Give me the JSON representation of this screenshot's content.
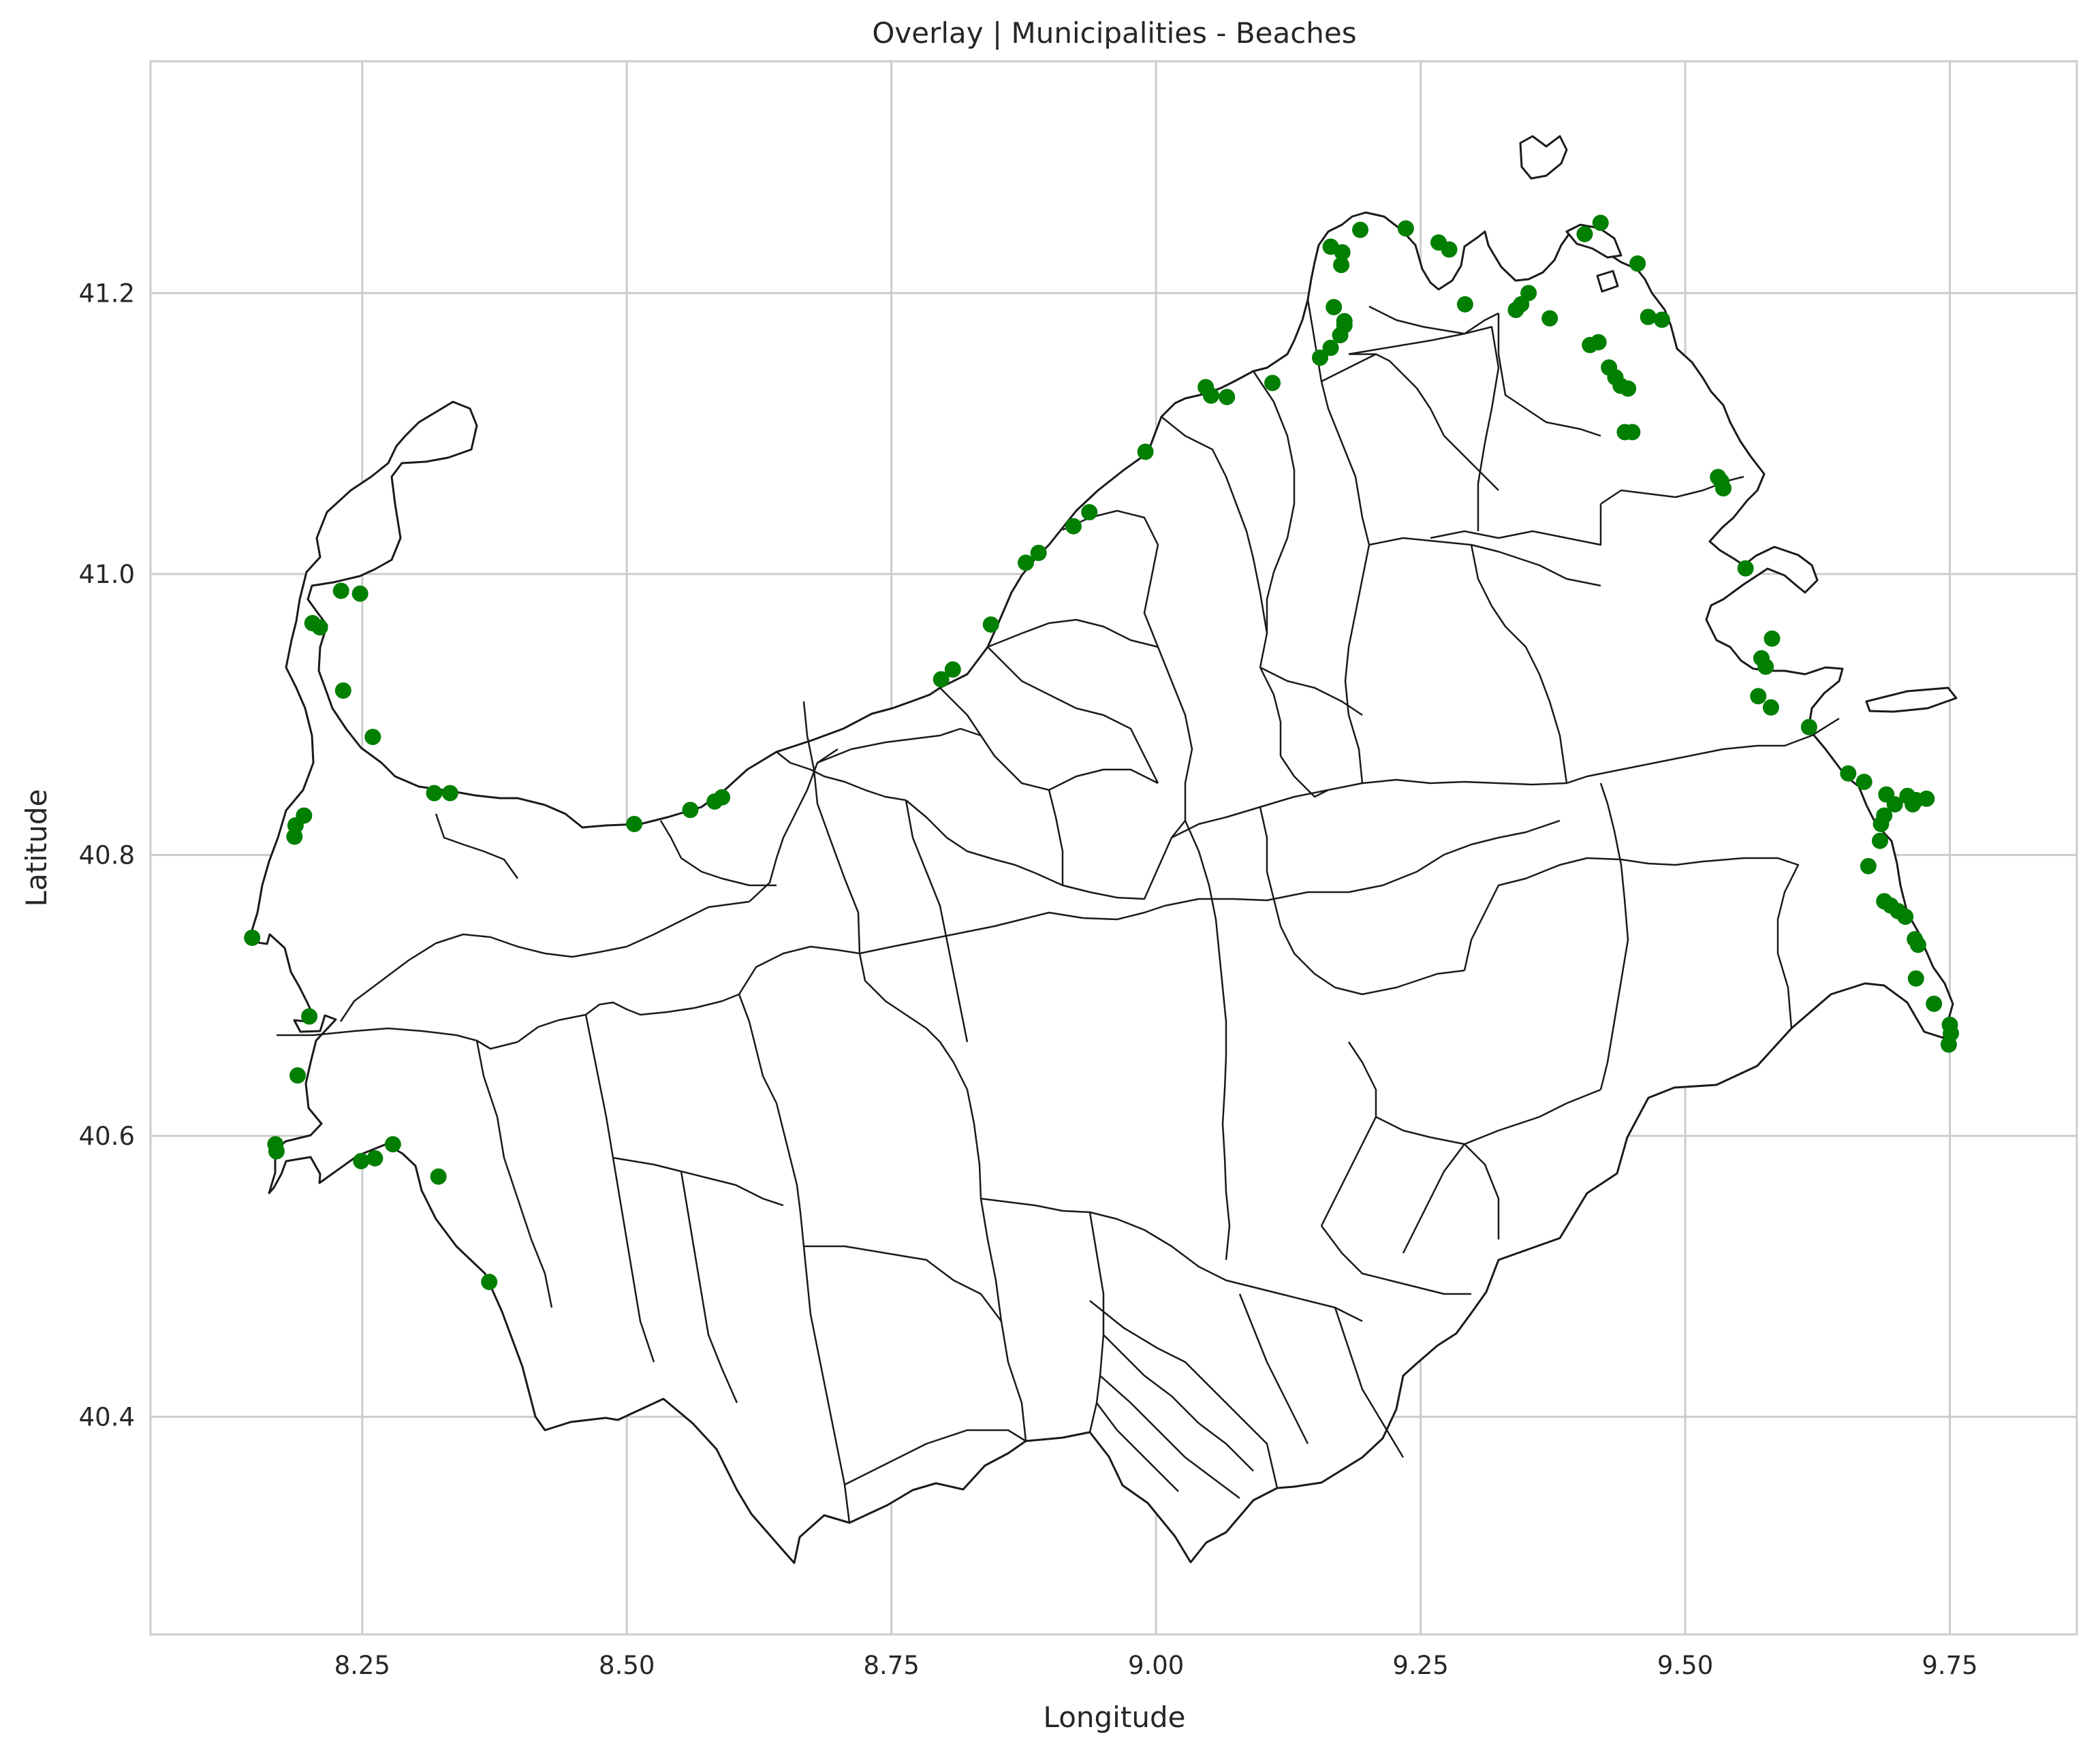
{
  "title": "Overlay | Municipalities - Beaches",
  "xlabel": "Longitude",
  "ylabel": "Latitude",
  "colors": {
    "beach": "#007f00",
    "boundary": "#1a1a1a",
    "grid": "#cccccc",
    "background": "#ffffff"
  },
  "axes": {
    "xlim": [
      8.05,
      9.87
    ],
    "ylim": [
      40.245,
      41.365
    ],
    "xticks": [
      8.25,
      8.5,
      8.75,
      9.0,
      9.25,
      9.5,
      9.75
    ],
    "yticks": [
      40.4,
      40.6,
      40.8,
      41.0,
      41.2
    ],
    "xtick_labels": [
      "8.25",
      "8.50",
      "8.75",
      "9.00",
      "9.25",
      "9.50",
      "9.75"
    ],
    "ytick_labels": [
      "40.4",
      "40.6",
      "40.8",
      "41.0",
      "41.2"
    ],
    "grid": true
  },
  "chart_data": {
    "type": "scatter",
    "series": [
      {
        "marker_color": "#007f00",
        "points": [
          [
            8.146,
            40.741
          ],
          [
            8.2,
            40.685
          ],
          [
            8.189,
            40.643
          ],
          [
            8.168,
            40.594
          ],
          [
            8.169,
            40.589
          ],
          [
            8.249,
            40.582
          ],
          [
            8.262,
            40.584
          ],
          [
            8.279,
            40.594
          ],
          [
            8.322,
            40.571
          ],
          [
            8.37,
            40.496
          ],
          [
            8.186,
            40.813
          ],
          [
            8.187,
            40.821
          ],
          [
            8.195,
            40.828
          ],
          [
            8.318,
            40.844
          ],
          [
            8.333,
            40.844
          ],
          [
            8.26,
            40.884
          ],
          [
            8.232,
            40.917
          ],
          [
            8.203,
            40.965
          ],
          [
            8.21,
            40.962
          ],
          [
            8.23,
            40.988
          ],
          [
            8.248,
            40.986
          ],
          [
            8.507,
            40.822
          ],
          [
            8.56,
            40.832
          ],
          [
            8.583,
            40.838
          ],
          [
            8.59,
            40.841
          ],
          [
            8.797,
            40.925
          ],
          [
            8.808,
            40.932
          ],
          [
            8.844,
            40.964
          ],
          [
            8.877,
            41.008
          ],
          [
            8.889,
            41.015
          ],
          [
            8.922,
            41.034
          ],
          [
            8.937,
            41.044
          ],
          [
            8.99,
            41.087
          ],
          [
            9.047,
            41.133
          ],
          [
            9.052,
            41.127
          ],
          [
            9.067,
            41.126
          ],
          [
            9.11,
            41.136
          ],
          [
            9.155,
            41.154
          ],
          [
            9.165,
            41.161
          ],
          [
            9.174,
            41.17
          ],
          [
            9.178,
            41.177
          ],
          [
            9.168,
            41.19
          ],
          [
            9.178,
            41.18
          ],
          [
            9.175,
            41.22
          ],
          [
            9.165,
            41.233
          ],
          [
            9.176,
            41.229
          ],
          [
            9.193,
            41.245
          ],
          [
            9.236,
            41.246
          ],
          [
            9.267,
            41.236
          ],
          [
            9.277,
            41.231
          ],
          [
            9.292,
            41.192
          ],
          [
            9.34,
            41.188
          ],
          [
            9.345,
            41.192
          ],
          [
            9.352,
            41.2
          ],
          [
            9.372,
            41.182
          ],
          [
            9.41,
            41.163
          ],
          [
            9.418,
            41.165
          ],
          [
            9.428,
            41.147
          ],
          [
            9.434,
            41.14
          ],
          [
            9.439,
            41.134
          ],
          [
            9.446,
            41.132
          ],
          [
            9.443,
            41.101
          ],
          [
            9.45,
            41.101
          ],
          [
            9.405,
            41.242
          ],
          [
            9.42,
            41.25
          ],
          [
            9.455,
            41.221
          ],
          [
            9.465,
            41.183
          ],
          [
            9.478,
            41.181
          ],
          [
            9.531,
            41.069
          ],
          [
            9.534,
            41.066
          ],
          [
            9.536,
            41.061
          ],
          [
            9.557,
            41.004
          ],
          [
            9.572,
            40.94
          ],
          [
            9.576,
            40.934
          ],
          [
            9.582,
            40.954
          ],
          [
            9.569,
            40.913
          ],
          [
            9.581,
            40.905
          ],
          [
            9.617,
            40.891
          ],
          [
            9.654,
            40.858
          ],
          [
            9.669,
            40.852
          ],
          [
            9.69,
            40.843
          ],
          [
            9.698,
            40.836
          ],
          [
            9.688,
            40.828
          ],
          [
            9.685,
            40.822
          ],
          [
            9.684,
            40.81
          ],
          [
            9.71,
            40.842
          ],
          [
            9.715,
            40.836
          ],
          [
            9.718,
            40.839
          ],
          [
            9.728,
            40.84
          ],
          [
            9.673,
            40.792
          ],
          [
            9.688,
            40.767
          ],
          [
            9.694,
            40.764
          ],
          [
            9.701,
            40.76
          ],
          [
            9.708,
            40.756
          ],
          [
            9.717,
            40.74
          ],
          [
            9.72,
            40.736
          ],
          [
            9.718,
            40.712
          ],
          [
            9.735,
            40.694
          ],
          [
            9.75,
            40.679
          ],
          [
            9.751,
            40.673
          ],
          [
            9.749,
            40.665
          ]
        ]
      }
    ]
  }
}
